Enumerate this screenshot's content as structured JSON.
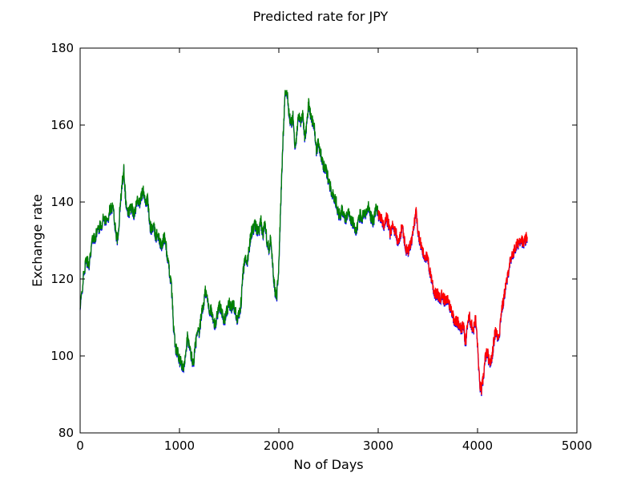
{
  "chart_data": {
    "type": "line",
    "title": "Predicted rate for JPY",
    "xlabel": "No of Days",
    "ylabel": "Exchange rate",
    "xlim": [
      0,
      5000
    ],
    "ylim": [
      80,
      180
    ],
    "x_ticks": [
      0,
      1000,
      2000,
      3000,
      4000,
      5000
    ],
    "y_ticks": [
      80,
      100,
      120,
      140,
      160,
      180
    ],
    "grid": false,
    "colors": {
      "actual": "#0000ff",
      "train_prediction": "#008000",
      "test_prediction": "#ff0000"
    },
    "series": [
      {
        "color": "#0000ff",
        "points": [
          [
            0,
            112
          ],
          [
            30,
            120
          ],
          [
            60,
            125
          ],
          [
            90,
            124
          ],
          [
            120,
            130
          ],
          [
            150,
            131
          ],
          [
            180,
            133
          ],
          [
            210,
            134
          ],
          [
            240,
            136
          ],
          [
            270,
            135
          ],
          [
            300,
            138
          ],
          [
            330,
            139
          ],
          [
            360,
            132
          ],
          [
            380,
            130
          ],
          [
            400,
            138
          ],
          [
            420,
            144
          ],
          [
            440,
            149
          ],
          [
            460,
            140
          ],
          [
            480,
            137
          ],
          [
            500,
            138
          ],
          [
            520,
            139
          ],
          [
            540,
            137
          ],
          [
            560,
            139
          ],
          [
            580,
            141
          ],
          [
            600,
            140
          ],
          [
            620,
            142
          ],
          [
            640,
            143
          ],
          [
            660,
            140
          ],
          [
            680,
            141
          ],
          [
            700,
            134
          ],
          [
            720,
            133
          ],
          [
            740,
            134
          ],
          [
            760,
            131
          ],
          [
            780,
            132
          ],
          [
            800,
            130
          ],
          [
            820,
            128
          ],
          [
            840,
            131
          ],
          [
            860,
            130
          ],
          [
            880,
            125
          ],
          [
            900,
            122
          ],
          [
            920,
            118
          ],
          [
            940,
            108
          ],
          [
            960,
            102
          ],
          [
            980,
            101
          ],
          [
            1000,
            99
          ],
          [
            1020,
            98
          ],
          [
            1040,
            96
          ],
          [
            1060,
            101
          ],
          [
            1080,
            105
          ],
          [
            1100,
            102
          ],
          [
            1120,
            100
          ],
          [
            1140,
            98
          ],
          [
            1160,
            103
          ],
          [
            1180,
            106
          ],
          [
            1200,
            106
          ],
          [
            1220,
            111
          ],
          [
            1240,
            113
          ],
          [
            1260,
            117
          ],
          [
            1280,
            115
          ],
          [
            1300,
            112
          ],
          [
            1320,
            112
          ],
          [
            1340,
            109
          ],
          [
            1360,
            108
          ],
          [
            1380,
            111
          ],
          [
            1400,
            113
          ],
          [
            1420,
            113
          ],
          [
            1440,
            109
          ],
          [
            1460,
            110
          ],
          [
            1480,
            112
          ],
          [
            1500,
            114
          ],
          [
            1520,
            112
          ],
          [
            1540,
            114
          ],
          [
            1560,
            112
          ],
          [
            1580,
            110
          ],
          [
            1600,
            111
          ],
          [
            1620,
            114
          ],
          [
            1640,
            122
          ],
          [
            1660,
            125
          ],
          [
            1680,
            124
          ],
          [
            1700,
            128
          ],
          [
            1720,
            132
          ],
          [
            1740,
            133
          ],
          [
            1760,
            134
          ],
          [
            1780,
            133
          ],
          [
            1800,
            132
          ],
          [
            1820,
            135
          ],
          [
            1840,
            131
          ],
          [
            1860,
            136
          ],
          [
            1880,
            130
          ],
          [
            1900,
            128
          ],
          [
            1920,
            131
          ],
          [
            1940,
            123
          ],
          [
            1960,
            117
          ],
          [
            1980,
            116
          ],
          [
            2000,
            124
          ],
          [
            2020,
            140
          ],
          [
            2040,
            155
          ],
          [
            2060,
            168
          ],
          [
            2080,
            169
          ],
          [
            2100,
            164
          ],
          [
            2120,
            160
          ],
          [
            2140,
            163
          ],
          [
            2160,
            155
          ],
          [
            2180,
            157
          ],
          [
            2200,
            163
          ],
          [
            2220,
            161
          ],
          [
            2240,
            163
          ],
          [
            2260,
            157
          ],
          [
            2280,
            160
          ],
          [
            2300,
            166
          ],
          [
            2320,
            163
          ],
          [
            2340,
            161
          ],
          [
            2360,
            159
          ],
          [
            2380,
            153
          ],
          [
            2400,
            156
          ],
          [
            2420,
            153
          ],
          [
            2440,
            150
          ],
          [
            2460,
            149
          ],
          [
            2480,
            148
          ],
          [
            2500,
            146
          ],
          [
            2520,
            144
          ],
          [
            2540,
            142
          ],
          [
            2560,
            141
          ],
          [
            2580,
            140
          ],
          [
            2600,
            137
          ],
          [
            2620,
            137
          ],
          [
            2640,
            138
          ],
          [
            2660,
            136
          ],
          [
            2680,
            136
          ],
          [
            2700,
            138
          ],
          [
            2720,
            136
          ],
          [
            2740,
            135
          ],
          [
            2760,
            134
          ],
          [
            2780,
            132
          ],
          [
            2800,
            135
          ],
          [
            2820,
            137
          ],
          [
            2840,
            136
          ],
          [
            2860,
            138
          ],
          [
            2880,
            137
          ],
          [
            2900,
            139
          ],
          [
            2920,
            137
          ],
          [
            2940,
            135
          ],
          [
            2960,
            136
          ],
          [
            2980,
            139
          ],
          [
            3000,
            137
          ],
          [
            3020,
            136
          ],
          [
            3040,
            135
          ],
          [
            3060,
            134
          ],
          [
            3080,
            136
          ],
          [
            3100,
            135
          ],
          [
            3120,
            132
          ],
          [
            3140,
            134
          ],
          [
            3160,
            133
          ],
          [
            3180,
            132
          ],
          [
            3200,
            129
          ],
          [
            3220,
            131
          ],
          [
            3240,
            134
          ],
          [
            3260,
            131
          ],
          [
            3280,
            128
          ],
          [
            3300,
            127
          ],
          [
            3320,
            129
          ],
          [
            3340,
            130
          ],
          [
            3360,
            134
          ],
          [
            3380,
            138
          ],
          [
            3400,
            133
          ],
          [
            3420,
            130
          ],
          [
            3440,
            128
          ],
          [
            3460,
            126
          ],
          [
            3480,
            126
          ],
          [
            3500,
            125
          ],
          [
            3520,
            122
          ],
          [
            3540,
            120
          ],
          [
            3560,
            117
          ],
          [
            3580,
            116
          ],
          [
            3600,
            116
          ],
          [
            3620,
            115
          ],
          [
            3640,
            116
          ],
          [
            3660,
            115
          ],
          [
            3680,
            114
          ],
          [
            3700,
            115
          ],
          [
            3720,
            113
          ],
          [
            3740,
            112
          ],
          [
            3760,
            110
          ],
          [
            3780,
            109
          ],
          [
            3800,
            109
          ],
          [
            3820,
            108
          ],
          [
            3840,
            107
          ],
          [
            3860,
            108
          ],
          [
            3880,
            103
          ],
          [
            3900,
            109
          ],
          [
            3920,
            110
          ],
          [
            3940,
            108
          ],
          [
            3960,
            107
          ],
          [
            3980,
            110
          ],
          [
            4000,
            103
          ],
          [
            4020,
            93
          ],
          [
            4040,
            91
          ],
          [
            4060,
            95
          ],
          [
            4080,
            100
          ],
          [
            4100,
            101
          ],
          [
            4120,
            98
          ],
          [
            4140,
            99
          ],
          [
            4160,
            103
          ],
          [
            4180,
            107
          ],
          [
            4200,
            105
          ],
          [
            4220,
            106
          ],
          [
            4240,
            112
          ],
          [
            4260,
            114
          ],
          [
            4280,
            118
          ],
          [
            4300,
            120
          ],
          [
            4320,
            124
          ],
          [
            4340,
            125
          ],
          [
            4360,
            127
          ],
          [
            4380,
            128
          ],
          [
            4400,
            129
          ],
          [
            4420,
            130
          ],
          [
            4440,
            131
          ],
          [
            4460,
            129
          ],
          [
            4480,
            130
          ],
          [
            4500,
            131
          ]
        ]
      },
      {
        "color": "#008000",
        "x_range": [
          0,
          3000
        ]
      },
      {
        "color": "#ff0000",
        "x_range": [
          3000,
          4500
        ]
      }
    ]
  }
}
